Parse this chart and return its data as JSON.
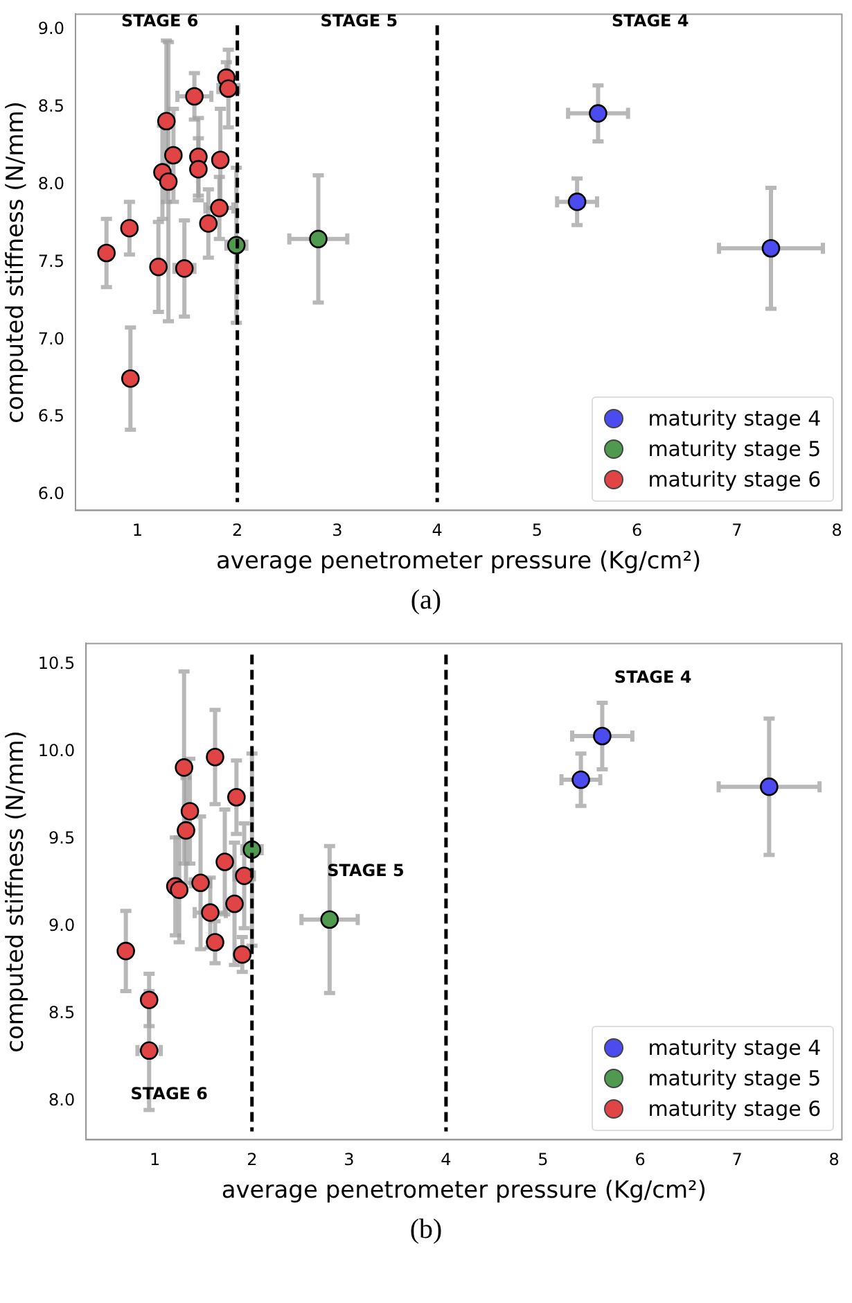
{
  "chart_data": [
    {
      "type": "scatter",
      "xlabel": "average penetrometer pressure (Kg/cm²)",
      "ylabel": "computed stiffness (N/mm)",
      "xlim": [
        0.38,
        8.05
      ],
      "ylim": [
        5.9,
        9.1
      ],
      "xticks": [
        1,
        2,
        3,
        4,
        5,
        6,
        7,
        8
      ],
      "yticks": [
        {
          "value": 6,
          "label": "6.0"
        },
        {
          "value": 6.5,
          "label": "6.5"
        },
        {
          "value": 7,
          "label": "7.0"
        },
        {
          "value": 7.5,
          "label": "7.5"
        },
        {
          "value": 8,
          "label": "8.0"
        },
        {
          "value": 8.5,
          "label": "8.5"
        },
        {
          "value": 9,
          "label": "9.0"
        }
      ],
      "grid": false,
      "legend": "bottom right",
      "marker": "circle",
      "ref_lines": [
        {
          "axis": "x",
          "value": 2,
          "line_style": "dashed",
          "color": "#000000"
        },
        {
          "axis": "x",
          "value": 4,
          "line_style": "dashed",
          "color": "#000000"
        }
      ],
      "annotations": [
        "STAGE 6",
        "STAGE 5",
        "STAGE 4",
        "(a)"
      ],
      "series": [
        {
          "name": "maturity stage 4",
          "color": "#4b4bef",
          "x": [
            5.61,
            5.4,
            7.34
          ],
          "values": [
            8.46,
            7.89,
            7.59
          ],
          "errors": [
            0.18,
            0.15,
            0.39
          ],
          "xerrors": [
            0.3,
            0.2,
            0.52
          ]
        },
        {
          "name": "maturity stage 5",
          "color": "#4f9a4f",
          "x": [
            1.99,
            2.81
          ],
          "values": [
            7.61,
            7.65
          ],
          "errors": [
            0.5,
            0.41
          ],
          "xerrors": [
            0.1,
            0.29
          ]
        },
        {
          "name": "maturity stage 6",
          "color": "#e04444",
          "x": [
            0.69,
            0.92,
            0.93,
            1.21,
            1.25,
            1.31,
            1.29,
            1.36,
            1.47,
            1.57,
            1.61,
            1.61,
            1.71,
            1.82,
            1.83,
            1.89,
            1.91
          ],
          "values": [
            7.56,
            7.72,
            6.75,
            7.47,
            8.08,
            8.02,
            8.41,
            8.19,
            7.46,
            8.57,
            8.18,
            8.1,
            7.75,
            7.85,
            8.16,
            8.69,
            8.62
          ],
          "errors": [
            0.22,
            0.17,
            0.33,
            0.29,
            0.3,
            0.9,
            0.52,
            0.3,
            0.31,
            0.15,
            0.25,
            0.2,
            0.22,
            0.2,
            0.33,
            0.1,
            0.25
          ],
          "xerrors": [
            null,
            null,
            null,
            null,
            null,
            null,
            null,
            null,
            0.1,
            0.17,
            null,
            null,
            null,
            0.14,
            null,
            null,
            0.1
          ]
        }
      ]
    },
    {
      "type": "scatter",
      "xlabel": "average penetrometer pressure (Kg/cm²)",
      "ylabel": "computed stiffness (N/mm)",
      "xlim": [
        0.29,
        8.08
      ],
      "ylim": [
        7.78,
        10.62
      ],
      "xticks": [
        1,
        2,
        3,
        4,
        5,
        6,
        7,
        8
      ],
      "yticks": [
        {
          "value": 8,
          "label": "8.0"
        },
        {
          "value": 8.5,
          "label": "8.5"
        },
        {
          "value": 9,
          "label": "9.0"
        },
        {
          "value": 9.5,
          "label": "9.5"
        },
        {
          "value": 10,
          "label": "10.0"
        },
        {
          "value": 10.5,
          "label": "10.5"
        }
      ],
      "grid": false,
      "legend": "bottom right",
      "marker": "circle",
      "ref_lines": [
        {
          "axis": "x",
          "value": 2,
          "line_style": "dashed",
          "color": "#000000"
        },
        {
          "axis": "x",
          "value": 4,
          "line_style": "dashed",
          "color": "#000000"
        }
      ],
      "annotations": [
        "STAGE 4",
        "STAGE 5",
        "STAGE 6",
        "(b)"
      ],
      "series": [
        {
          "name": "maturity stage 4",
          "color": "#4b4bef",
          "x": [
            5.61,
            5.39,
            7.33
          ],
          "values": [
            10.09,
            9.84,
            9.8
          ],
          "errors": [
            0.19,
            0.15,
            0.39
          ],
          "xerrors": [
            0.31,
            0.2,
            0.52
          ]
        },
        {
          "name": "maturity stage 5",
          "color": "#4f9a4f",
          "x": [
            2.0,
            2.8
          ],
          "values": [
            9.44,
            9.04
          ],
          "errors": [
            0.55,
            0.42
          ],
          "xerrors": [
            0.1,
            0.29
          ]
        },
        {
          "name": "maturity stage 6",
          "color": "#e04444",
          "x": [
            0.7,
            0.94,
            0.94,
            1.21,
            1.25,
            1.3,
            1.32,
            1.36,
            1.47,
            1.57,
            1.62,
            1.62,
            1.72,
            1.82,
            1.84,
            1.9,
            1.92
          ],
          "values": [
            8.86,
            8.58,
            8.29,
            9.23,
            9.21,
            9.91,
            9.55,
            9.66,
            9.25,
            9.08,
            9.97,
            8.91,
            9.37,
            9.13,
            9.74,
            8.84,
            9.29
          ],
          "errors": [
            0.23,
            0.15,
            0.34,
            0.28,
            0.3,
            0.55,
            0.3,
            0.3,
            0.38,
            0.2,
            0.27,
            0.12,
            0.3,
            0.35,
            0.21,
            0.1,
            0.3
          ],
          "xerrors": [
            null,
            null,
            0.12,
            null,
            null,
            null,
            null,
            null,
            0.1,
            0.16,
            null,
            null,
            null,
            null,
            null,
            null,
            0.1
          ]
        }
      ]
    }
  ]
}
